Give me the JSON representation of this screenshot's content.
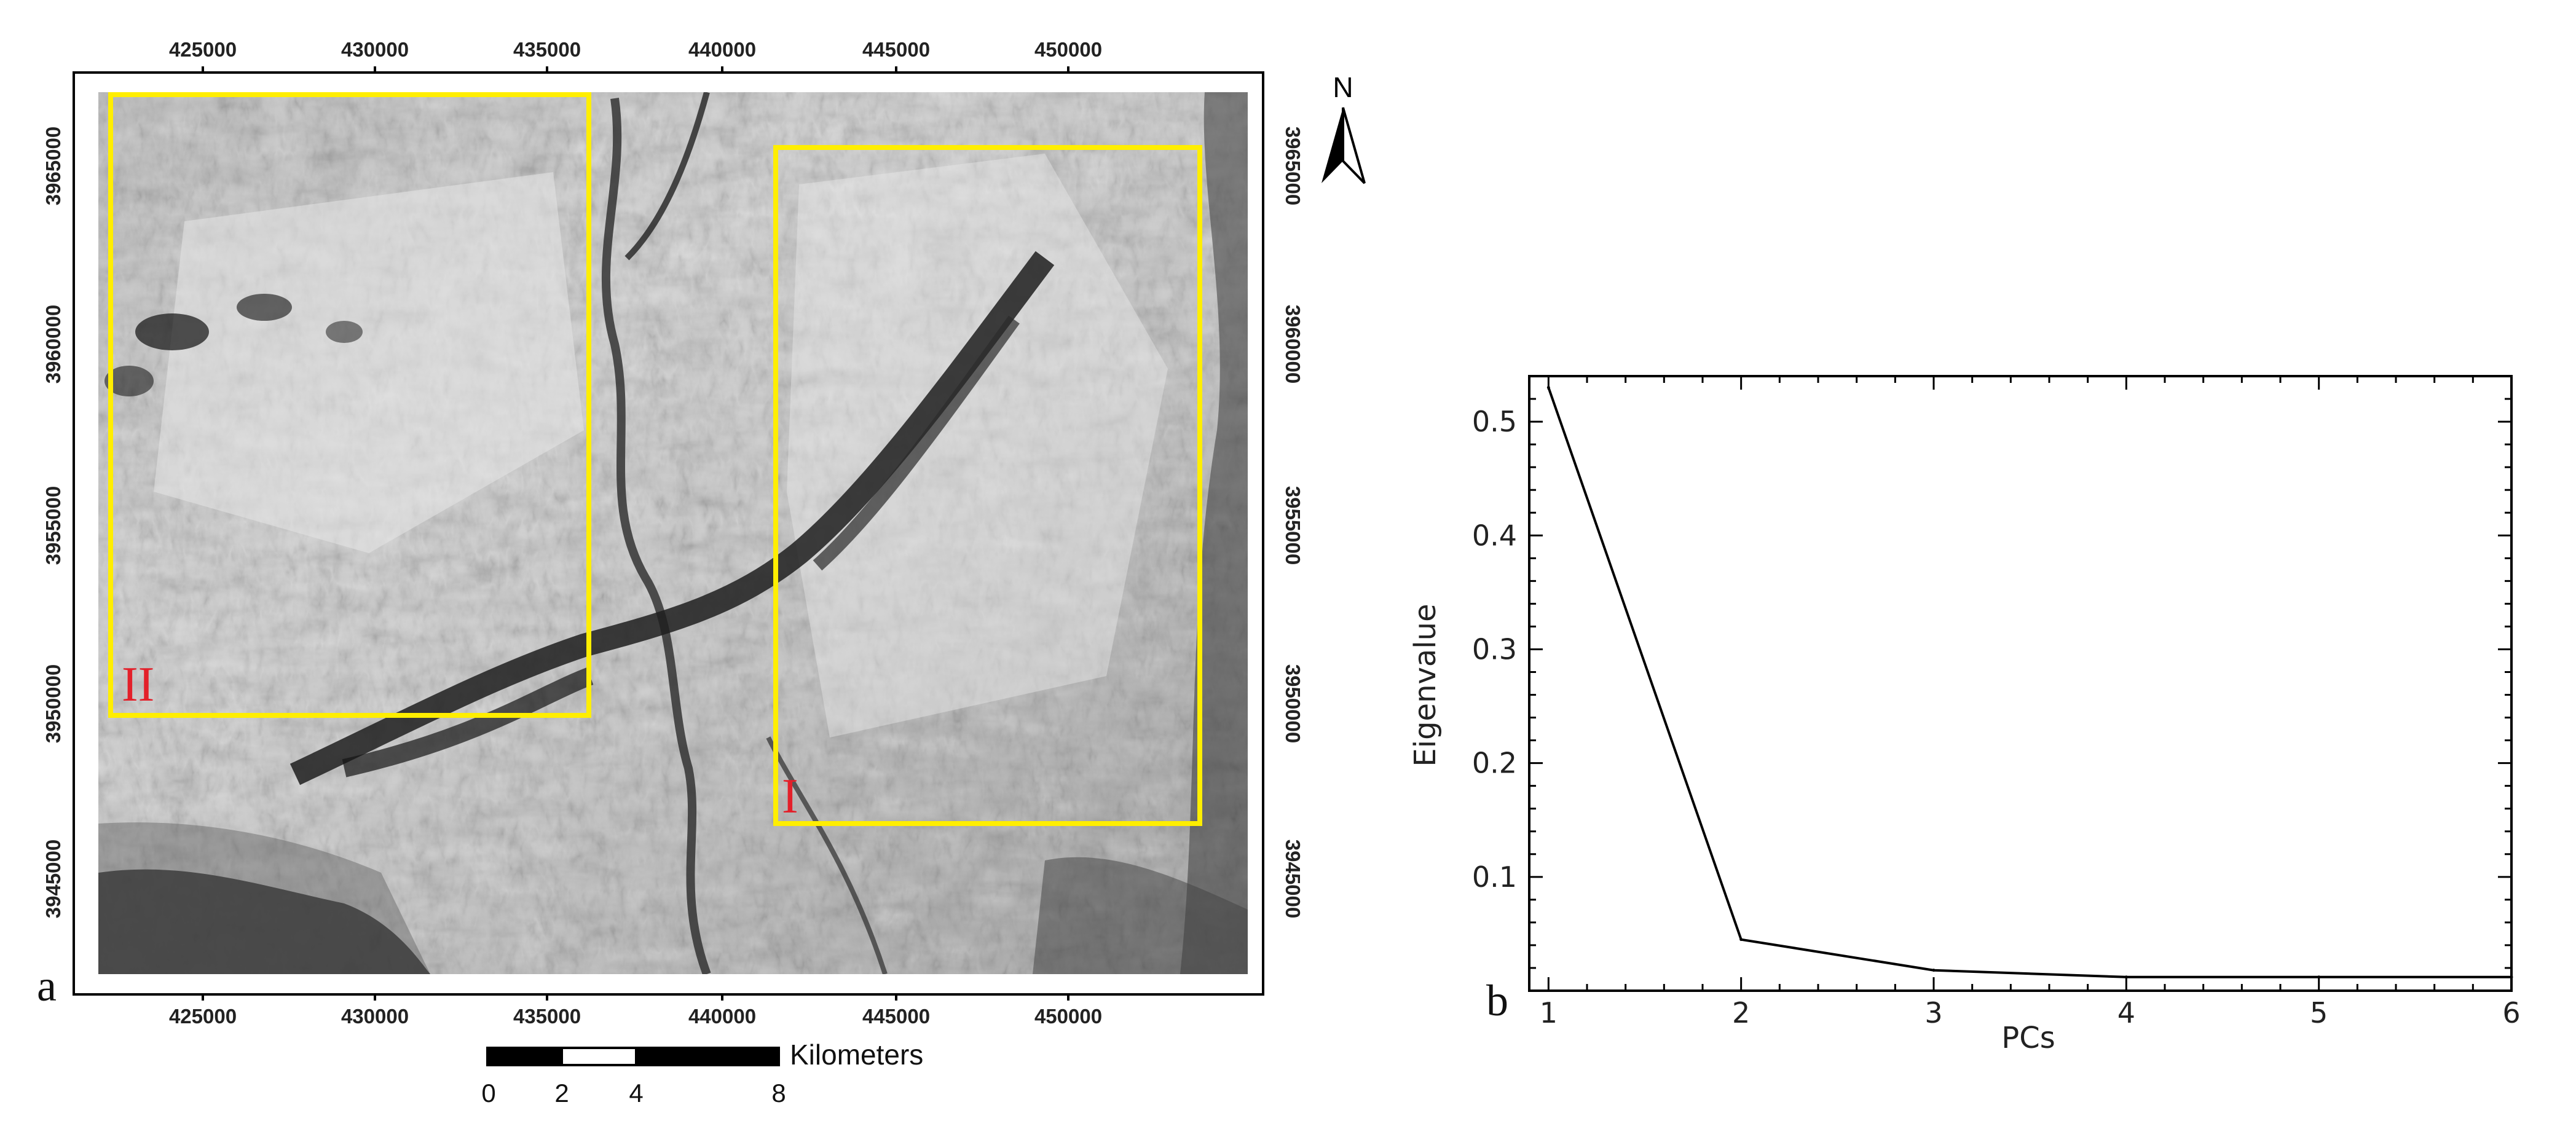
{
  "colors": {
    "roi": "#ffee00",
    "roi_label": "#e3202a",
    "axis": "#000000",
    "map_dark": "#1e1e1e",
    "map_mid": "#8a8a8a",
    "map_light": "#dcdcdc"
  },
  "panel_a": {
    "letter": "a",
    "x_ticks": [
      "425000",
      "430000",
      "435000",
      "440000",
      "445000",
      "450000"
    ],
    "y_ticks_left": [
      "3965000",
      "3960000",
      "3955000",
      "3950000",
      "3945000"
    ],
    "y_ticks_right": [
      "3965000",
      "3960000",
      "3955000",
      "3950000",
      "3945000"
    ],
    "north_label": "N",
    "regions": [
      {
        "label": "II"
      },
      {
        "label": "I"
      }
    ],
    "scale_bar": {
      "title": "Kilometers",
      "ticks": [
        "0",
        "2",
        "4",
        "8"
      ]
    }
  },
  "chart_data": {
    "type": "line",
    "panel_letter": "b",
    "xlabel": "PCs",
    "ylabel": "Eigenvalue",
    "x": [
      1,
      2,
      3,
      4,
      5,
      6
    ],
    "values": [
      0.53,
      0.045,
      0.018,
      0.012,
      0.012,
      0.012
    ],
    "xlim": [
      0.9,
      6.0
    ],
    "ylim": [
      0.0,
      0.54
    ],
    "x_ticks": [
      "1",
      "2",
      "3",
      "4",
      "5",
      "6"
    ],
    "y_ticks": [
      "0.5",
      "0.4",
      "0.3",
      "0.2",
      "0.1"
    ],
    "grid": false
  }
}
